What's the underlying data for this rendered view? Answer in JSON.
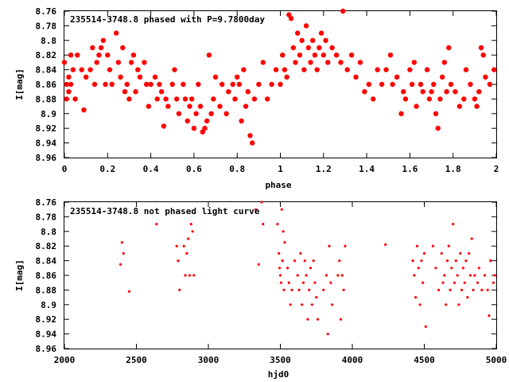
{
  "chart_data": [
    {
      "type": "scatter",
      "title": "235514-3748.8 phased with P=9.7800day",
      "xlabel": "phase",
      "ylabel": "I[mag]",
      "xlim": [
        0,
        2
      ],
      "ylim": [
        8.96,
        8.76
      ],
      "y_inverted": true,
      "grid": false,
      "marker": "filled-circle",
      "color": "#ff0000",
      "x_ticks": [
        "0",
        "0.2",
        "0.4",
        "0.6",
        "0.8",
        "1",
        "1.2",
        "1.4",
        "1.6",
        "1.8",
        "2"
      ],
      "y_ticks": [
        "8.76",
        "8.78",
        "8.8",
        "8.82",
        "8.84",
        "8.86",
        "8.88",
        "8.9",
        "8.92",
        "8.94",
        "8.96"
      ],
      "points": [
        [
          0.0,
          8.83
        ],
        [
          0.01,
          8.86
        ],
        [
          0.01,
          8.88
        ],
        [
          0.02,
          8.85
        ],
        [
          0.02,
          8.87
        ],
        [
          0.03,
          8.82
        ],
        [
          0.03,
          8.86
        ],
        [
          0.04,
          8.84
        ],
        [
          0.05,
          8.88
        ],
        [
          0.06,
          8.82
        ],
        [
          0.08,
          8.84
        ],
        [
          0.09,
          8.895
        ],
        [
          0.1,
          8.85
        ],
        [
          0.12,
          8.84
        ],
        [
          0.13,
          8.81
        ],
        [
          0.14,
          8.86
        ],
        [
          0.15,
          8.83
        ],
        [
          0.16,
          8.82
        ],
        [
          0.17,
          8.81
        ],
        [
          0.18,
          8.8
        ],
        [
          0.19,
          8.86
        ],
        [
          0.2,
          8.82
        ],
        [
          0.21,
          8.84
        ],
        [
          0.22,
          8.86
        ],
        [
          0.24,
          8.79
        ],
        [
          0.25,
          8.83
        ],
        [
          0.26,
          8.85
        ],
        [
          0.27,
          8.81
        ],
        [
          0.28,
          8.87
        ],
        [
          0.29,
          8.86
        ],
        [
          0.3,
          8.88
        ],
        [
          0.31,
          8.83
        ],
        [
          0.32,
          8.82
        ],
        [
          0.33,
          8.87
        ],
        [
          0.34,
          8.84
        ],
        [
          0.35,
          8.85
        ],
        [
          0.37,
          8.83
        ],
        [
          0.38,
          8.86
        ],
        [
          0.39,
          8.89
        ],
        [
          0.4,
          8.86
        ],
        [
          0.42,
          8.85
        ],
        [
          0.43,
          8.88
        ],
        [
          0.44,
          8.86
        ],
        [
          0.45,
          8.87
        ],
        [
          0.46,
          8.917
        ],
        [
          0.47,
          8.88
        ],
        [
          0.48,
          8.89
        ],
        [
          0.5,
          8.86
        ],
        [
          0.51,
          8.84
        ],
        [
          0.52,
          8.88
        ],
        [
          0.53,
          8.9
        ],
        [
          0.55,
          8.86
        ],
        [
          0.56,
          8.88
        ],
        [
          0.57,
          8.91
        ],
        [
          0.58,
          8.89
        ],
        [
          0.59,
          8.88
        ],
        [
          0.6,
          8.92
        ],
        [
          0.61,
          8.9
        ],
        [
          0.62,
          8.86
        ],
        [
          0.63,
          8.89
        ],
        [
          0.64,
          8.925
        ],
        [
          0.65,
          8.92
        ],
        [
          0.66,
          8.91
        ],
        [
          0.67,
          8.82
        ],
        [
          0.68,
          8.9
        ],
        [
          0.69,
          8.88
        ],
        [
          0.7,
          8.85
        ],
        [
          0.72,
          8.89
        ],
        [
          0.73,
          8.86
        ],
        [
          0.75,
          8.9
        ],
        [
          0.76,
          8.87
        ],
        [
          0.78,
          8.86
        ],
        [
          0.79,
          8.88
        ],
        [
          0.8,
          8.85
        ],
        [
          0.81,
          8.86
        ],
        [
          0.82,
          8.91
        ],
        [
          0.83,
          8.84
        ],
        [
          0.84,
          8.89
        ],
        [
          0.85,
          8.87
        ],
        [
          0.86,
          8.93
        ],
        [
          0.87,
          8.94
        ],
        [
          0.88,
          8.88
        ],
        [
          0.9,
          8.86
        ],
        [
          0.92,
          8.83
        ],
        [
          0.94,
          8.88
        ],
        [
          0.96,
          8.86
        ],
        [
          0.98,
          8.84
        ],
        [
          1.0,
          8.86
        ],
        [
          1.01,
          8.82
        ],
        [
          1.02,
          8.84
        ],
        [
          1.03,
          8.85
        ],
        [
          1.04,
          8.765
        ],
        [
          1.05,
          8.77
        ],
        [
          1.06,
          8.81
        ],
        [
          1.07,
          8.83
        ],
        [
          1.08,
          8.79
        ],
        [
          1.09,
          8.82
        ],
        [
          1.1,
          8.8
        ],
        [
          1.11,
          8.84
        ],
        [
          1.12,
          8.78
        ],
        [
          1.13,
          8.81
        ],
        [
          1.14,
          8.83
        ],
        [
          1.15,
          8.8
        ],
        [
          1.16,
          8.82
        ],
        [
          1.17,
          8.84
        ],
        [
          1.18,
          8.81
        ],
        [
          1.19,
          8.79
        ],
        [
          1.2,
          8.82
        ],
        [
          1.21,
          8.8
        ],
        [
          1.22,
          8.83
        ],
        [
          1.24,
          8.81
        ],
        [
          1.26,
          8.82
        ],
        [
          1.28,
          8.83
        ],
        [
          1.29,
          8.76
        ],
        [
          1.31,
          8.84
        ],
        [
          1.33,
          8.82
        ],
        [
          1.35,
          8.85
        ],
        [
          1.37,
          8.83
        ],
        [
          1.39,
          8.87
        ],
        [
          1.41,
          8.86
        ],
        [
          1.43,
          8.88
        ],
        [
          1.45,
          8.84
        ],
        [
          1.47,
          8.86
        ],
        [
          1.49,
          8.84
        ],
        [
          1.51,
          8.82
        ],
        [
          1.52,
          8.86
        ],
        [
          1.54,
          8.85
        ],
        [
          1.56,
          8.9
        ],
        [
          1.57,
          8.87
        ],
        [
          1.58,
          8.88
        ],
        [
          1.6,
          8.84
        ],
        [
          1.61,
          8.86
        ],
        [
          1.62,
          8.83
        ],
        [
          1.63,
          8.89
        ],
        [
          1.65,
          8.86
        ],
        [
          1.66,
          8.87
        ],
        [
          1.68,
          8.84
        ],
        [
          1.69,
          8.88
        ],
        [
          1.7,
          8.87
        ],
        [
          1.71,
          8.86
        ],
        [
          1.72,
          8.9
        ],
        [
          1.73,
          8.92
        ],
        [
          1.74,
          8.88
        ],
        [
          1.75,
          8.85
        ],
        [
          1.76,
          8.83
        ],
        [
          1.77,
          8.87
        ],
        [
          1.78,
          8.81
        ],
        [
          1.79,
          8.86
        ],
        [
          1.81,
          8.87
        ],
        [
          1.83,
          8.89
        ],
        [
          1.85,
          8.88
        ],
        [
          1.86,
          8.84
        ],
        [
          1.88,
          8.86
        ],
        [
          1.9,
          8.88
        ],
        [
          1.91,
          8.89
        ],
        [
          1.92,
          8.87
        ],
        [
          1.93,
          8.81
        ],
        [
          1.94,
          8.82
        ],
        [
          1.95,
          8.85
        ],
        [
          1.97,
          8.86
        ],
        [
          1.99,
          8.84
        ]
      ]
    },
    {
      "type": "scatter",
      "title": "235514-3748.8 not phased light curve",
      "xlabel": "hjd0",
      "ylabel": "I[mag]",
      "xlim": [
        2000,
        5000
      ],
      "ylim": [
        8.96,
        8.76
      ],
      "y_inverted": true,
      "grid": false,
      "marker": "small-dot",
      "color": "#ff0000",
      "x_ticks": [
        "2000",
        "2500",
        "3000",
        "3500",
        "4000",
        "4500",
        "5000"
      ],
      "y_ticks": [
        "8.76",
        "8.78",
        "8.8",
        "8.82",
        "8.84",
        "8.86",
        "8.88",
        "8.9",
        "8.92",
        "8.94",
        "8.96"
      ],
      "points": [
        [
          2390,
          8.845
        ],
        [
          2400,
          8.815
        ],
        [
          2410,
          8.83
        ],
        [
          2450,
          8.882
        ],
        [
          2640,
          8.79
        ],
        [
          2780,
          8.82
        ],
        [
          2790,
          8.84
        ],
        [
          2800,
          8.88
        ],
        [
          2830,
          8.82
        ],
        [
          2840,
          8.86
        ],
        [
          2850,
          8.83
        ],
        [
          2860,
          8.81
        ],
        [
          2870,
          8.86
        ],
        [
          2880,
          8.79
        ],
        [
          2890,
          8.8
        ],
        [
          2900,
          8.86
        ],
        [
          3330,
          8.77
        ],
        [
          3350,
          8.845
        ],
        [
          3370,
          8.76
        ],
        [
          3380,
          8.79
        ],
        [
          3480,
          8.79
        ],
        [
          3490,
          8.83
        ],
        [
          3495,
          8.85
        ],
        [
          3500,
          8.86
        ],
        [
          3505,
          8.87
        ],
        [
          3510,
          8.77
        ],
        [
          3515,
          8.84
        ],
        [
          3520,
          8.8
        ],
        [
          3525,
          8.88
        ],
        [
          3530,
          8.815
        ],
        [
          3550,
          8.85
        ],
        [
          3560,
          8.87
        ],
        [
          3570,
          8.9
        ],
        [
          3580,
          8.88
        ],
        [
          3600,
          8.84
        ],
        [
          3620,
          8.86
        ],
        [
          3630,
          8.88
        ],
        [
          3640,
          8.83
        ],
        [
          3650,
          8.9
        ],
        [
          3660,
          8.87
        ],
        [
          3670,
          8.84
        ],
        [
          3680,
          8.86
        ],
        [
          3690,
          8.92
        ],
        [
          3700,
          8.88
        ],
        [
          3710,
          8.85
        ],
        [
          3720,
          8.9
        ],
        [
          3730,
          8.84
        ],
        [
          3740,
          8.87
        ],
        [
          3750,
          8.89
        ],
        [
          3760,
          8.92
        ],
        [
          3800,
          8.88
        ],
        [
          3820,
          8.86
        ],
        [
          3830,
          8.94
        ],
        [
          3840,
          8.82
        ],
        [
          3850,
          8.87
        ],
        [
          3860,
          8.9
        ],
        [
          3900,
          8.86
        ],
        [
          3910,
          8.84
        ],
        [
          3920,
          8.92
        ],
        [
          3930,
          8.86
        ],
        [
          3940,
          8.88
        ],
        [
          3950,
          8.82
        ],
        [
          4230,
          8.818
        ],
        [
          4420,
          8.84
        ],
        [
          4430,
          8.86
        ],
        [
          4440,
          8.89
        ],
        [
          4450,
          8.82
        ],
        [
          4460,
          8.85
        ],
        [
          4470,
          8.9
        ],
        [
          4480,
          8.84
        ],
        [
          4490,
          8.87
        ],
        [
          4500,
          8.83
        ],
        [
          4510,
          8.93
        ],
        [
          4560,
          8.82
        ],
        [
          4580,
          8.85
        ],
        [
          4600,
          8.88
        ],
        [
          4620,
          8.83
        ],
        [
          4630,
          8.87
        ],
        [
          4640,
          8.86
        ],
        [
          4650,
          8.9
        ],
        [
          4660,
          8.84
        ],
        [
          4670,
          8.82
        ],
        [
          4680,
          8.88
        ],
        [
          4690,
          8.85
        ],
        [
          4700,
          8.79
        ],
        [
          4710,
          8.87
        ],
        [
          4720,
          8.84
        ],
        [
          4730,
          8.86
        ],
        [
          4740,
          8.9
        ],
        [
          4750,
          8.83
        ],
        [
          4760,
          8.88
        ],
        [
          4770,
          8.85
        ],
        [
          4780,
          8.87
        ],
        [
          4790,
          8.84
        ],
        [
          4800,
          8.89
        ],
        [
          4810,
          8.83
        ],
        [
          4820,
          8.86
        ],
        [
          4830,
          8.81
        ],
        [
          4840,
          8.88
        ],
        [
          4850,
          8.86
        ],
        [
          4870,
          8.87
        ],
        [
          4880,
          8.85
        ],
        [
          4900,
          8.88
        ],
        [
          4920,
          8.86
        ],
        [
          4940,
          8.88
        ],
        [
          4950,
          8.915
        ],
        [
          4960,
          8.84
        ],
        [
          4980,
          8.87
        ],
        [
          4990,
          8.86
        ]
      ]
    }
  ]
}
